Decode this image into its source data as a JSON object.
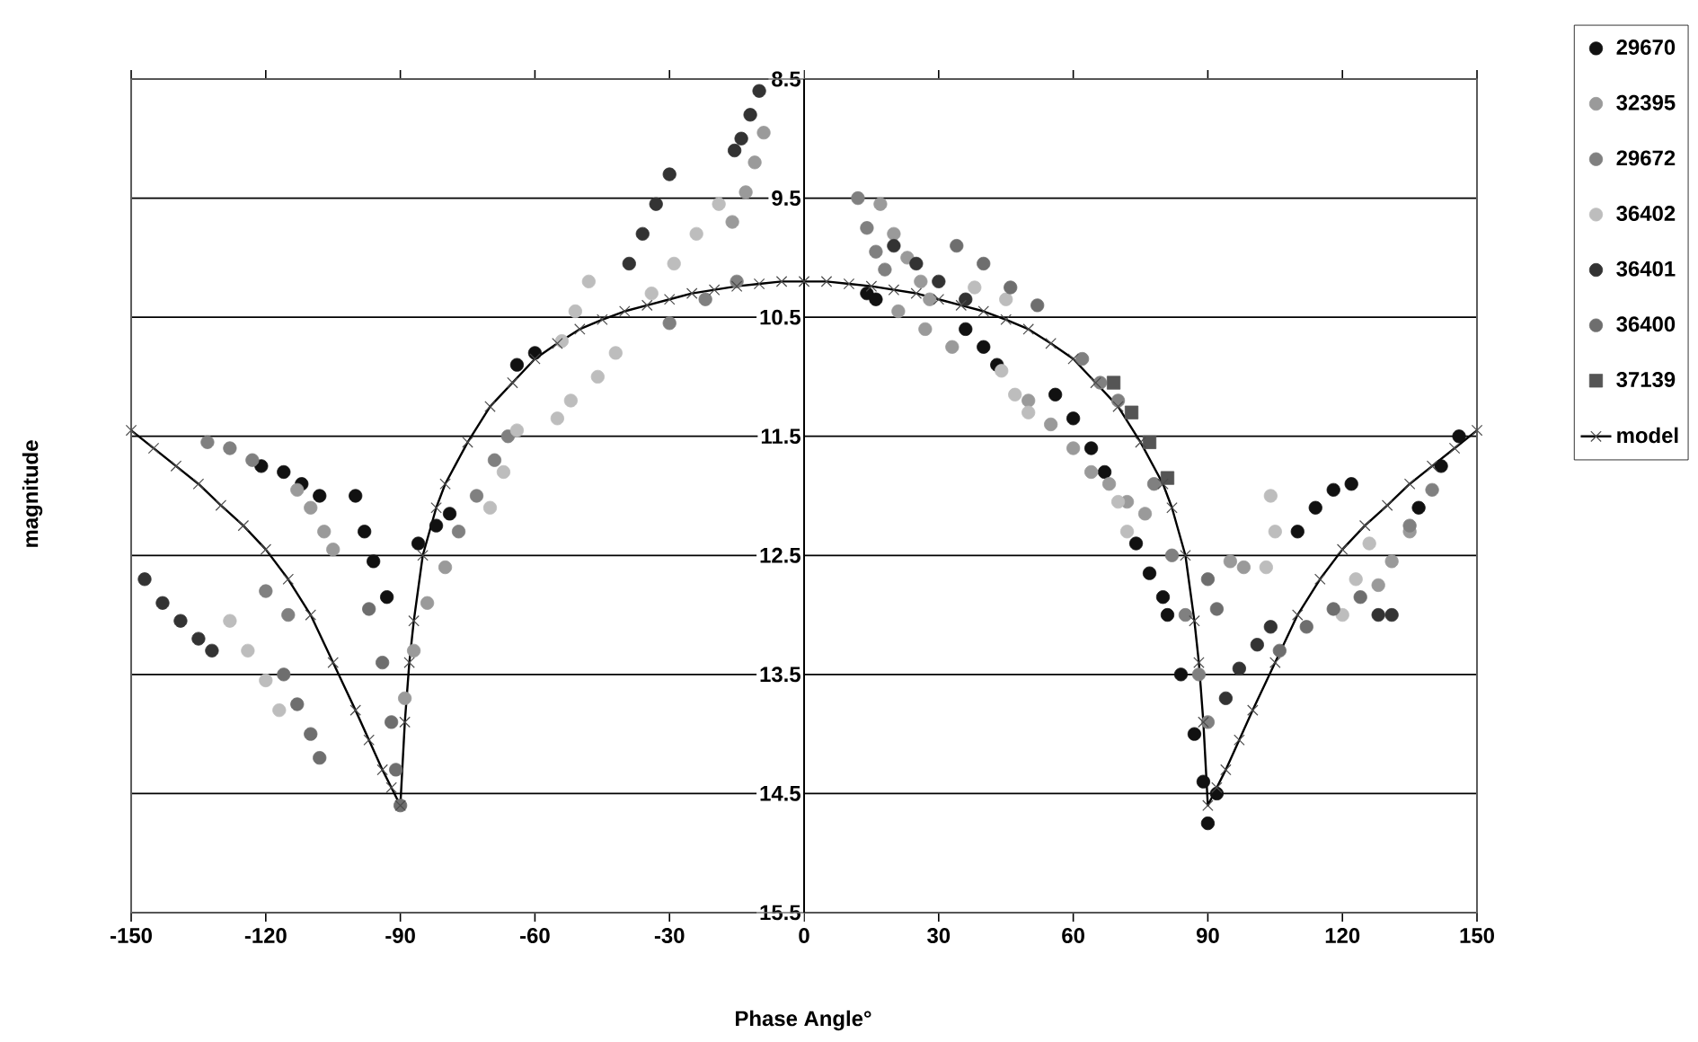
{
  "chart_data": {
    "type": "scatter",
    "xlabel": "Phase Angle°",
    "ylabel": "magnitude",
    "xlim": [
      -150,
      150
    ],
    "ylim": [
      15.5,
      8.5
    ],
    "xticks": [
      -150,
      -120,
      -90,
      -60,
      -30,
      0,
      30,
      60,
      90,
      120,
      150
    ],
    "yticks": [
      8.5,
      9.5,
      10.5,
      11.5,
      12.5,
      13.5,
      14.5,
      15.5
    ],
    "grid": "y",
    "legend": "right",
    "marker": "circle",
    "series": [
      {
        "name": "29670",
        "color": "#111111",
        "x": [
          -64,
          -60,
          -121,
          -116,
          -112,
          -108,
          -100,
          -98,
          -96,
          -93,
          -86,
          -82,
          -79,
          14,
          16,
          36,
          40,
          43,
          56,
          60,
          64,
          67,
          74,
          77,
          80,
          81,
          84,
          87,
          89,
          90,
          92,
          110,
          114,
          118,
          122,
          137,
          142,
          146
        ],
        "values": [
          10.9,
          10.8,
          11.75,
          11.8,
          11.9,
          12.0,
          12.0,
          12.3,
          12.55,
          12.85,
          12.4,
          12.25,
          12.15,
          10.3,
          10.35,
          10.6,
          10.75,
          10.9,
          11.15,
          11.35,
          11.6,
          11.8,
          12.4,
          12.65,
          12.85,
          13.0,
          13.5,
          14.0,
          14.4,
          14.75,
          14.5,
          12.3,
          12.1,
          11.95,
          11.9,
          12.1,
          11.75,
          11.5
        ]
      },
      {
        "name": "32395",
        "color": "#9a9a9a",
        "x": [
          -9,
          -11,
          -13,
          -16,
          -113,
          -110,
          -107,
          -105,
          -80,
          -84,
          -87,
          -89,
          17,
          20,
          23,
          26,
          28,
          21,
          27,
          33,
          50,
          55,
          60,
          64,
          68,
          72,
          76,
          95,
          98,
          128,
          131,
          135
        ],
        "values": [
          8.95,
          9.2,
          9.45,
          9.7,
          11.95,
          12.1,
          12.3,
          12.45,
          12.6,
          12.9,
          13.3,
          13.7,
          9.55,
          9.8,
          10.0,
          10.2,
          10.35,
          10.45,
          10.6,
          10.75,
          11.2,
          11.4,
          11.6,
          11.8,
          11.9,
          12.05,
          12.15,
          12.55,
          12.6,
          12.75,
          12.55,
          12.3
        ]
      },
      {
        "name": "29672",
        "color": "#808080",
        "x": [
          -15,
          -22,
          -30,
          -133,
          -128,
          -123,
          -120,
          -115,
          -77,
          -73,
          -69,
          -66,
          12,
          14,
          16,
          18,
          62,
          66,
          70,
          78,
          82,
          85,
          88,
          90,
          135,
          140
        ],
        "values": [
          10.2,
          10.35,
          10.55,
          11.55,
          11.6,
          11.7,
          12.8,
          13.0,
          12.3,
          12.0,
          11.7,
          11.5,
          9.5,
          9.75,
          9.95,
          10.1,
          10.85,
          11.05,
          11.2,
          11.9,
          12.5,
          13.0,
          13.5,
          13.9,
          12.25,
          11.95
        ]
      },
      {
        "name": "36402",
        "color": "#bdbdbd",
        "x": [
          -19,
          -24,
          -29,
          -34,
          -48,
          -51,
          -54,
          -42,
          -46,
          -52,
          -55,
          -64,
          -67,
          -70,
          -128,
          -124,
          -120,
          -117,
          38,
          45,
          44,
          47,
          50,
          70,
          72,
          104,
          105,
          103,
          120,
          123,
          126
        ],
        "values": [
          9.55,
          9.8,
          10.05,
          10.3,
          10.2,
          10.45,
          10.7,
          10.8,
          11.0,
          11.2,
          11.35,
          11.45,
          11.8,
          12.1,
          13.05,
          13.3,
          13.55,
          13.8,
          10.25,
          10.35,
          10.95,
          11.15,
          11.3,
          12.05,
          12.3,
          12.0,
          12.3,
          12.6,
          13.0,
          12.7,
          12.4
        ]
      },
      {
        "name": "36401",
        "color": "#333333",
        "x": [
          -10,
          -12,
          -14,
          -15.5,
          -30,
          -33,
          -36,
          -39,
          -147,
          -143,
          -139,
          -135,
          -132,
          20,
          25,
          30,
          36,
          94,
          97,
          101,
          104,
          128,
          131
        ],
        "values": [
          8.6,
          8.8,
          9.0,
          9.1,
          9.3,
          9.55,
          9.8,
          10.05,
          12.7,
          12.9,
          13.05,
          13.2,
          13.3,
          9.9,
          10.05,
          10.2,
          10.35,
          13.7,
          13.45,
          13.25,
          13.1,
          13.0,
          13.0
        ]
      },
      {
        "name": "36400",
        "color": "#6e6e6e",
        "x": [
          -116,
          -113,
          -110,
          -108,
          -97,
          -94,
          -92,
          -91,
          -90,
          34,
          40,
          46,
          52,
          90,
          92,
          106,
          112,
          118,
          124
        ],
        "values": [
          13.5,
          13.75,
          14.0,
          14.2,
          12.95,
          13.4,
          13.9,
          14.3,
          14.6,
          9.9,
          10.05,
          10.25,
          10.4,
          12.7,
          12.95,
          13.3,
          13.1,
          12.95,
          12.85
        ]
      },
      {
        "name": "37139",
        "color": "#555555",
        "marker": "square",
        "x": [
          69,
          73,
          77,
          81
        ],
        "values": [
          11.05,
          11.3,
          11.55,
          11.85
        ]
      },
      {
        "name": "model",
        "type": "line",
        "marker": "cross",
        "color": "#000000",
        "x": [
          -150,
          -145,
          -140,
          -135,
          -130,
          -125,
          -120,
          -115,
          -110,
          -105,
          -100,
          -97,
          -94,
          -92,
          -90,
          -89,
          -88,
          -87,
          -85,
          -82,
          -80,
          -75,
          -70,
          -65,
          -60,
          -55,
          -50,
          -45,
          -40,
          -35,
          -30,
          -25,
          -20,
          -15,
          -10,
          -5,
          0,
          5,
          10,
          15,
          20,
          25,
          30,
          35,
          40,
          45,
          50,
          55,
          60,
          65,
          70,
          75,
          80,
          82,
          85,
          87,
          88,
          89,
          90,
          92,
          94,
          97,
          100,
          105,
          110,
          115,
          120,
          125,
          130,
          135,
          140,
          145,
          150
        ],
        "values": [
          11.45,
          11.6,
          11.75,
          11.9,
          12.08,
          12.25,
          12.45,
          12.7,
          13.0,
          13.4,
          13.8,
          14.05,
          14.3,
          14.45,
          14.6,
          13.9,
          13.4,
          13.05,
          12.5,
          12.1,
          11.9,
          11.55,
          11.25,
          11.05,
          10.85,
          10.72,
          10.6,
          10.52,
          10.45,
          10.4,
          10.35,
          10.3,
          10.27,
          10.24,
          10.22,
          10.2,
          10.2,
          10.2,
          10.22,
          10.24,
          10.27,
          10.3,
          10.35,
          10.4,
          10.45,
          10.52,
          10.6,
          10.72,
          10.85,
          11.05,
          11.25,
          11.55,
          11.9,
          12.1,
          12.5,
          13.05,
          13.4,
          13.9,
          14.6,
          14.45,
          14.3,
          14.05,
          13.8,
          13.4,
          13.0,
          12.7,
          12.45,
          12.25,
          12.08,
          11.9,
          11.75,
          11.6,
          11.45
        ]
      }
    ]
  }
}
